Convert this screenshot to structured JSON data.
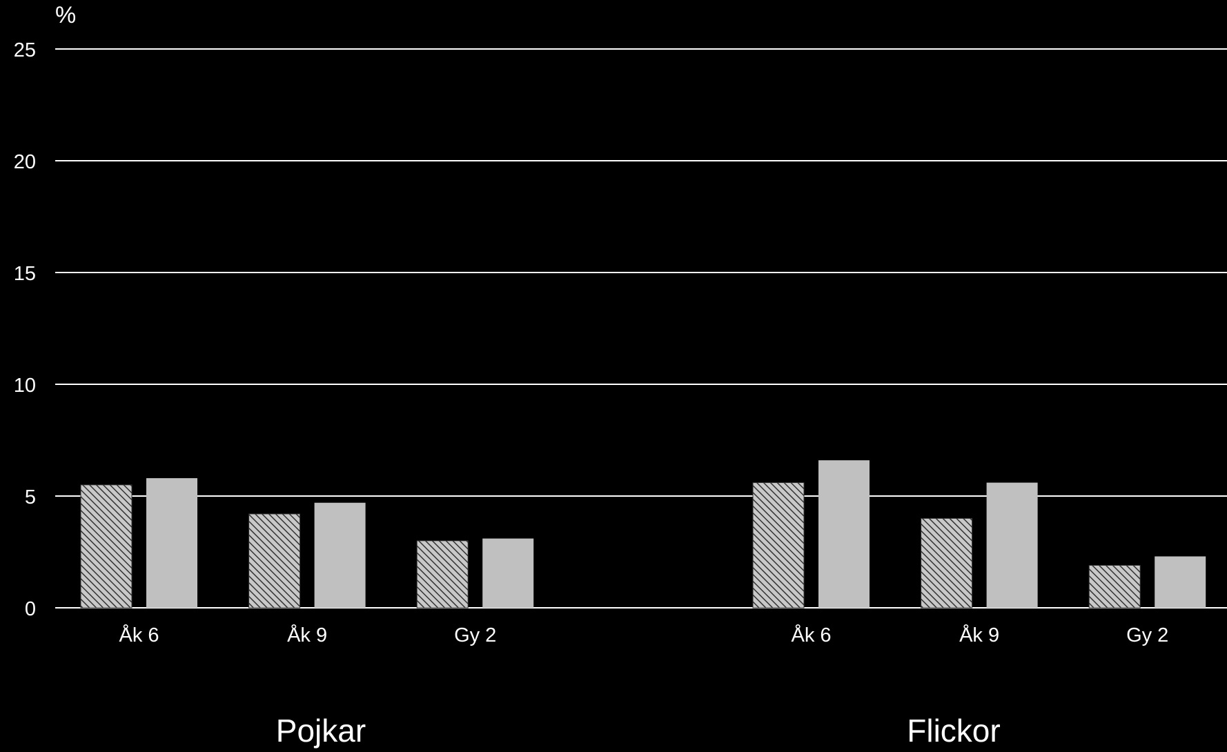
{
  "chart_data": {
    "type": "bar",
    "ylabel": "%",
    "ylim": [
      0,
      25
    ],
    "yticks": [
      0,
      5,
      10,
      15,
      20,
      25
    ],
    "grid": true,
    "groups": [
      {
        "label": "Pojkar",
        "categories": [
          "Åk 6",
          "Åk 9",
          "Gy 2"
        ],
        "series": [
          {
            "values": [
              5.5,
              4.2,
              3.0
            ]
          },
          {
            "values": [
              5.8,
              4.7,
              3.1
            ]
          }
        ]
      },
      {
        "label": "Flickor",
        "categories": [
          "Åk 6",
          "Åk 9",
          "Gy 2"
        ],
        "series": [
          {
            "values": [
              5.6,
              4.0,
              1.9
            ]
          },
          {
            "values": [
              6.6,
              5.6,
              2.3
            ]
          }
        ]
      }
    ],
    "colors": {
      "background": "#000000",
      "grid": "#ffffff",
      "bar_solid": "#c0c0c0",
      "bar_hatch_bg": "#c8c8c8",
      "bar_hatch_line": "#333333",
      "text": "#ffffff"
    }
  }
}
